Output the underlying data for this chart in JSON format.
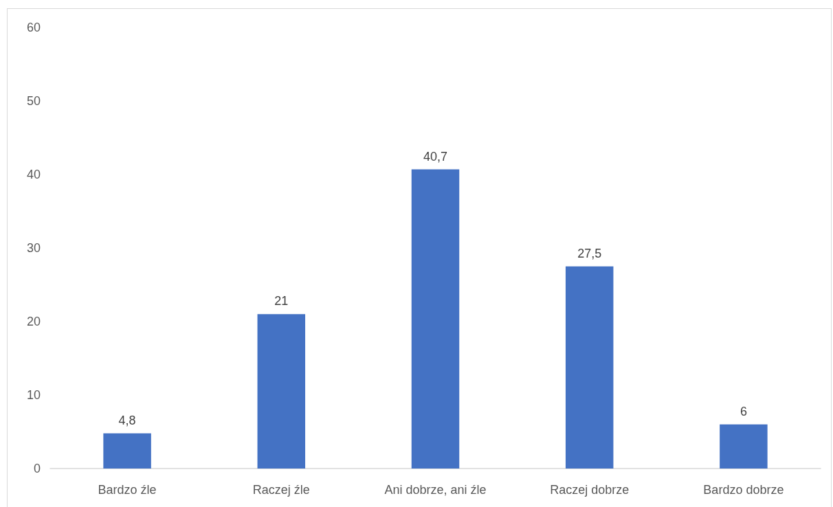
{
  "chart_data": {
    "type": "bar",
    "categories": [
      "Bardzo źle",
      "Raczej źle",
      "Ani dobrze, ani źle",
      "Raczej dobrze",
      "Bardzo dobrze"
    ],
    "values": [
      4.8,
      21,
      40.7,
      27.5,
      6
    ],
    "color": "#4472c4",
    "value_labels": [
      "4,8",
      "21",
      "40,7",
      "27,5",
      "6"
    ],
    "ylim": [
      0,
      60
    ],
    "yticks": [
      0,
      10,
      20,
      30,
      40,
      50,
      60
    ],
    "grid": false
  }
}
